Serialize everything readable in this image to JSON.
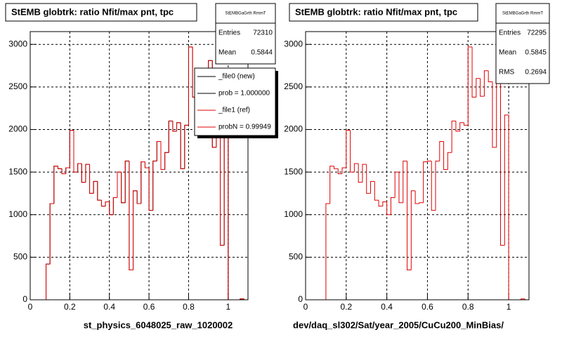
{
  "chart_data": [
    {
      "type": "histogram",
      "title": "StEMB globtrk: ratio Nfit/max pnt, tpc",
      "xlabel": "st_physics_6048025_raw_1020002",
      "bins": [
        0,
        0.02,
        0.04,
        0.06,
        0.08,
        0.1,
        0.12,
        0.14,
        0.16,
        0.18,
        0.2,
        0.22,
        0.24,
        0.26,
        0.28,
        0.3,
        0.32,
        0.34,
        0.36,
        0.38,
        0.4,
        0.42,
        0.44,
        0.46,
        0.48,
        0.5,
        0.52,
        0.54,
        0.56,
        0.58,
        0.6,
        0.62,
        0.64,
        0.66,
        0.68,
        0.7,
        0.72,
        0.74,
        0.76,
        0.78,
        0.8,
        0.82,
        0.84,
        0.86,
        0.88,
        0.9,
        0.92,
        0.94,
        0.96,
        0.98,
        1,
        1.02,
        1.04,
        1.06,
        1.08,
        1.1
      ],
      "series": [
        {
          "name": "_file0 (new)",
          "color": "#000000",
          "values": [
            0,
            0,
            0,
            0,
            420,
            1130,
            1570,
            1540,
            1480,
            1550,
            1990,
            1500,
            1600,
            1380,
            1590,
            1250,
            1390,
            1170,
            1100,
            1150,
            1000,
            1200,
            1500,
            1140,
            1630,
            350,
            1280,
            1130,
            1620,
            1550,
            1050,
            1630,
            1860,
            1530,
            1730,
            2100,
            1980,
            2080,
            1540,
            2050,
            2970,
            2380,
            2600,
            2390,
            2690,
            2810,
            1790,
            2240,
            640,
            2170,
            0,
            0,
            0,
            10,
            0
          ]
        },
        {
          "name": "_file1 (ref)",
          "color": "#e00000",
          "values": [
            0,
            0,
            0,
            0,
            420,
            1130,
            1570,
            1540,
            1480,
            1550,
            1990,
            1500,
            1600,
            1380,
            1590,
            1250,
            1390,
            1170,
            1100,
            1150,
            1000,
            1200,
            1500,
            1140,
            1630,
            350,
            1280,
            1130,
            1620,
            1550,
            1050,
            1630,
            1860,
            1530,
            1730,
            2100,
            1980,
            2080,
            1540,
            2050,
            2970,
            2380,
            2600,
            2390,
            2690,
            2810,
            1790,
            2240,
            640,
            2170,
            0,
            0,
            0,
            10,
            0
          ]
        }
      ],
      "legend_notes": [
        "prob = 1.000000",
        "probN = 0.99949"
      ],
      "stats": {
        "title": "StEMBGaGrth RmmT",
        "rows": [
          {
            "label": "Entries",
            "value": 72310
          },
          {
            "label": "Mean",
            "value": 0.5844
          }
        ]
      },
      "xlim": [
        0,
        1.1
      ],
      "ylim": [
        0,
        3150
      ],
      "xticks": [
        0,
        0.2,
        0.4,
        0.6,
        0.8,
        1
      ],
      "yticks": [
        0,
        500,
        1000,
        1500,
        2000,
        2500,
        3000
      ],
      "grid": true
    },
    {
      "type": "histogram",
      "title": "StEMB globtrk: ratio Nfit/max pnt, tpc",
      "xlabel": "dev/daq_sl302/Sat/year_2005/CuCu200_MinBias/",
      "bins": [
        0,
        0.02,
        0.04,
        0.06,
        0.08,
        0.1,
        0.12,
        0.14,
        0.16,
        0.18,
        0.2,
        0.22,
        0.24,
        0.26,
        0.28,
        0.3,
        0.32,
        0.34,
        0.36,
        0.38,
        0.4,
        0.42,
        0.44,
        0.46,
        0.48,
        0.5,
        0.52,
        0.54,
        0.56,
        0.58,
        0.6,
        0.62,
        0.64,
        0.66,
        0.68,
        0.7,
        0.72,
        0.74,
        0.76,
        0.78,
        0.8,
        0.82,
        0.84,
        0.86,
        0.88,
        0.9,
        0.92,
        0.94,
        0.96,
        0.98,
        1,
        1.02,
        1.04,
        1.06,
        1.08,
        1.1
      ],
      "series": [
        {
          "color": "#e00000",
          "values": [
            0,
            0,
            0,
            0,
            0,
            1130,
            1570,
            1540,
            1480,
            1550,
            1990,
            1500,
            1600,
            1380,
            1590,
            1250,
            1390,
            1170,
            1100,
            1150,
            1000,
            1200,
            1500,
            1140,
            1630,
            350,
            1280,
            1130,
            1140,
            1620,
            1630,
            1050,
            1630,
            1860,
            1530,
            1730,
            2100,
            1980,
            2080,
            2050,
            2970,
            2380,
            2600,
            2390,
            2690,
            2560,
            1790,
            2810,
            640,
            2170,
            0,
            0,
            0,
            10,
            0
          ]
        }
      ],
      "stats": {
        "title": "StEMBGaGrth RmmT",
        "rows": [
          {
            "label": "Entries",
            "value": 72295
          },
          {
            "label": "Mean",
            "value": 0.5845
          },
          {
            "label": "RMS",
            "value": 0.2694
          }
        ]
      },
      "xlim": [
        0,
        1.1
      ],
      "ylim": [
        0,
        3150
      ],
      "xticks": [
        0,
        0.2,
        0.4,
        0.6,
        0.8,
        1
      ],
      "yticks": [
        0,
        500,
        1000,
        1500,
        2000,
        2500,
        3000
      ],
      "grid": true
    }
  ]
}
